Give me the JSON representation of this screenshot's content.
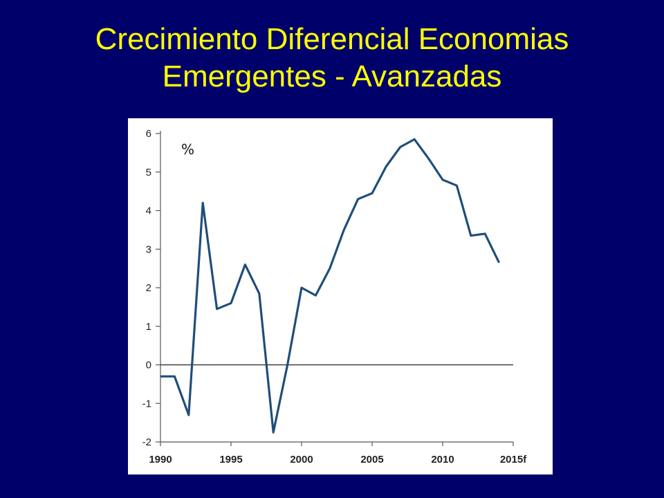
{
  "slide": {
    "title_line1": "Crecimiento Diferencial Economias",
    "title_line2": "Emergentes - Avanzadas",
    "title_color": "#ffff00",
    "background_color": "#00006b"
  },
  "chart_data": {
    "type": "line",
    "title": "",
    "xlabel": "",
    "ylabel": "%",
    "unit_label": "%",
    "xlim": [
      1990,
      2015
    ],
    "ylim": [
      -2,
      6
    ],
    "x_ticks": [
      1990,
      1995,
      2000,
      2005,
      2010,
      2015
    ],
    "x_tick_labels": [
      "1990",
      "1995",
      "2000",
      "2005",
      "2010",
      "2015f"
    ],
    "y_ticks": [
      -2,
      -1,
      0,
      1,
      2,
      3,
      4,
      5,
      6
    ],
    "y_tick_labels": [
      "-2",
      "-1",
      "0",
      "1",
      "2",
      "3",
      "4",
      "5",
      "6"
    ],
    "zero_line": true,
    "grid": false,
    "legend": "none",
    "series": [
      {
        "color": "#1f4e79",
        "x": [
          1990,
          1991,
          1992,
          1993,
          1994,
          1995,
          1996,
          1997,
          1998,
          1999,
          2000,
          2001,
          2002,
          2003,
          2004,
          2005,
          2006,
          2007,
          2008,
          2009,
          2010,
          2011,
          2012,
          2013,
          2014
        ],
        "values": [
          -0.3,
          -0.3,
          -1.3,
          4.2,
          1.45,
          1.6,
          2.6,
          1.85,
          -1.75,
          0.0,
          2.0,
          1.8,
          2.5,
          3.5,
          4.3,
          4.45,
          5.15,
          5.65,
          5.85,
          5.35,
          4.8,
          4.65,
          3.35,
          3.4,
          2.65
        ]
      }
    ]
  }
}
